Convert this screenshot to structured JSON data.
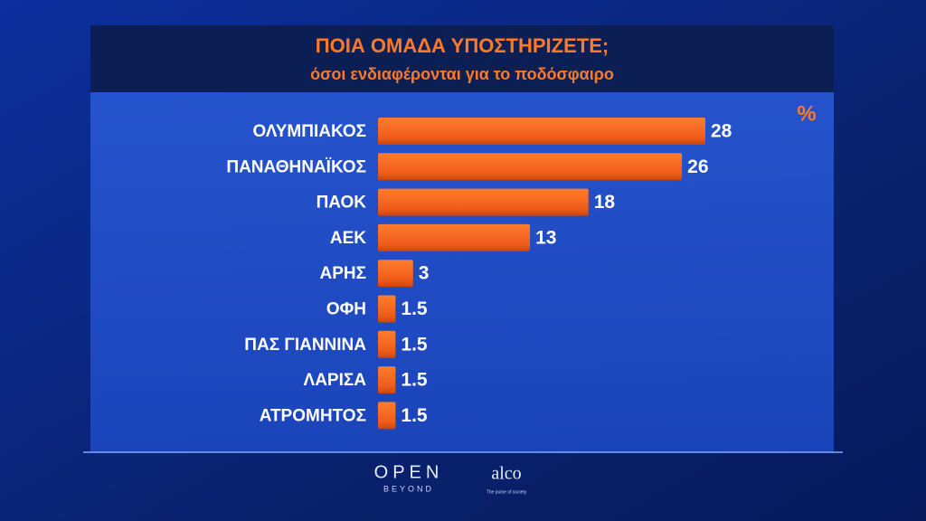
{
  "chart_data": {
    "type": "bar",
    "orientation": "horizontal",
    "title": "ΠΟΙΑ ΟΜΑΔΑ ΥΠΟΣΤΗΡΙΖΕΤΕ;",
    "subtitle": "όσοι ενδιαφέρονται για το ποδόσφαιρο",
    "unit_label": "%",
    "categories": [
      "ΟΛΥΜΠΙΑΚΟΣ",
      "ΠΑΝΑΘΗΝΑΪΚΟΣ",
      "ΠΑΟΚ",
      "ΑΕΚ",
      "ΑΡΗΣ",
      "ΟΦΗ",
      "ΠΑΣ ΓΙΑΝΝΙΝΑ",
      "ΛΑΡΙΣΑ",
      "ΑΤΡΟΜΗΤΟΣ"
    ],
    "values": [
      28,
      26,
      18,
      13,
      3,
      1.5,
      1.5,
      1.5,
      1.5
    ],
    "color": "#f2601c"
  },
  "branding": {
    "channel": "OPEN",
    "channel_sub": "BEYOND",
    "pollster": "alco",
    "pollster_sub": "The pulse of society"
  }
}
